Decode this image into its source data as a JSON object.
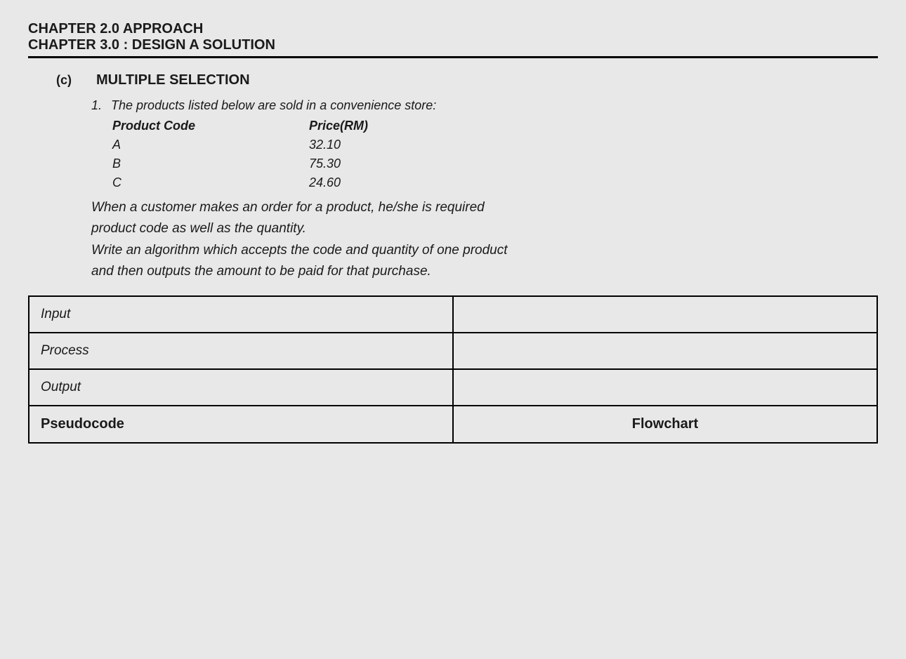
{
  "header": {
    "line1": "CHAPTER 2.0 APPROACH",
    "line2": "CHAPTER 3.0 : DESIGN A SOLUTION"
  },
  "section": {
    "label": "(c)",
    "title": "MULTIPLE SELECTION"
  },
  "question": {
    "number": "1.",
    "intro": "The products listed below are sold in a convenience store:",
    "table": {
      "headers": {
        "col1": "Product Code",
        "col2": "Price(RM)"
      },
      "rows": [
        {
          "code": "A",
          "price": "32.10"
        },
        {
          "code": "B",
          "price": "75.30"
        },
        {
          "code": "C",
          "price": "24.60"
        }
      ]
    },
    "body_line1": "When a customer makes an order for a product, he/she is required",
    "body_line2": "product code as well as the quantity.",
    "body_line3": "Write an algorithm which accepts the code and quantity of one product",
    "body_line4": "and then outputs the amount to be paid for that purchase."
  },
  "answer_table": {
    "rows": [
      {
        "label": "Input",
        "value": ""
      },
      {
        "label": "Process",
        "value": ""
      },
      {
        "label": "Output",
        "value": ""
      }
    ],
    "footer": {
      "left": "Pseudocode",
      "right": "Flowchart"
    }
  },
  "colors": {
    "background": "#e8e8e8",
    "text": "#1a1a1a",
    "border": "#000000"
  }
}
